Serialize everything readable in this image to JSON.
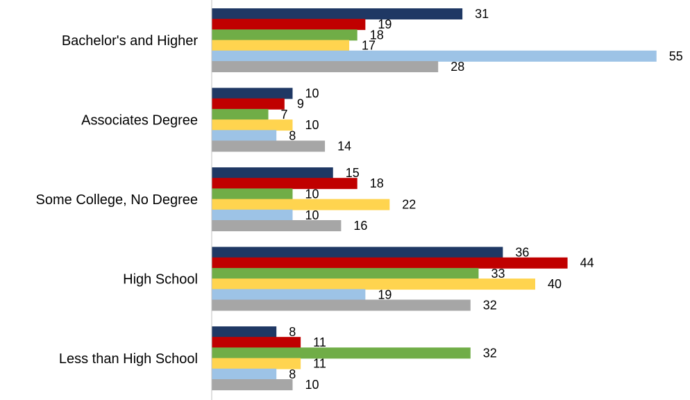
{
  "chart_data": {
    "type": "bar",
    "orientation": "horizontal",
    "title": "",
    "xlabel": "",
    "ylabel": "",
    "grid": false,
    "legend": "none",
    "xlim": [
      0,
      60
    ],
    "categories": [
      "Bachelor's and Higher",
      "Associates Degree",
      "Some College, No Degree",
      "High School",
      "Less than High School"
    ],
    "series": [
      {
        "color": "#1f3864",
        "values": [
          31,
          10,
          15,
          36,
          8
        ]
      },
      {
        "color": "#c00000",
        "values": [
          19,
          9,
          18,
          44,
          11
        ]
      },
      {
        "color": "#70ad47",
        "values": [
          18,
          7,
          10,
          33,
          32
        ]
      },
      {
        "color": "#ffd44f",
        "values": [
          17,
          10,
          22,
          40,
          11
        ]
      },
      {
        "color": "#9dc3e6",
        "values": [
          55,
          8,
          10,
          19,
          8
        ]
      },
      {
        "color": "#a6a6a6",
        "values": [
          28,
          14,
          16,
          32,
          10
        ]
      }
    ]
  }
}
